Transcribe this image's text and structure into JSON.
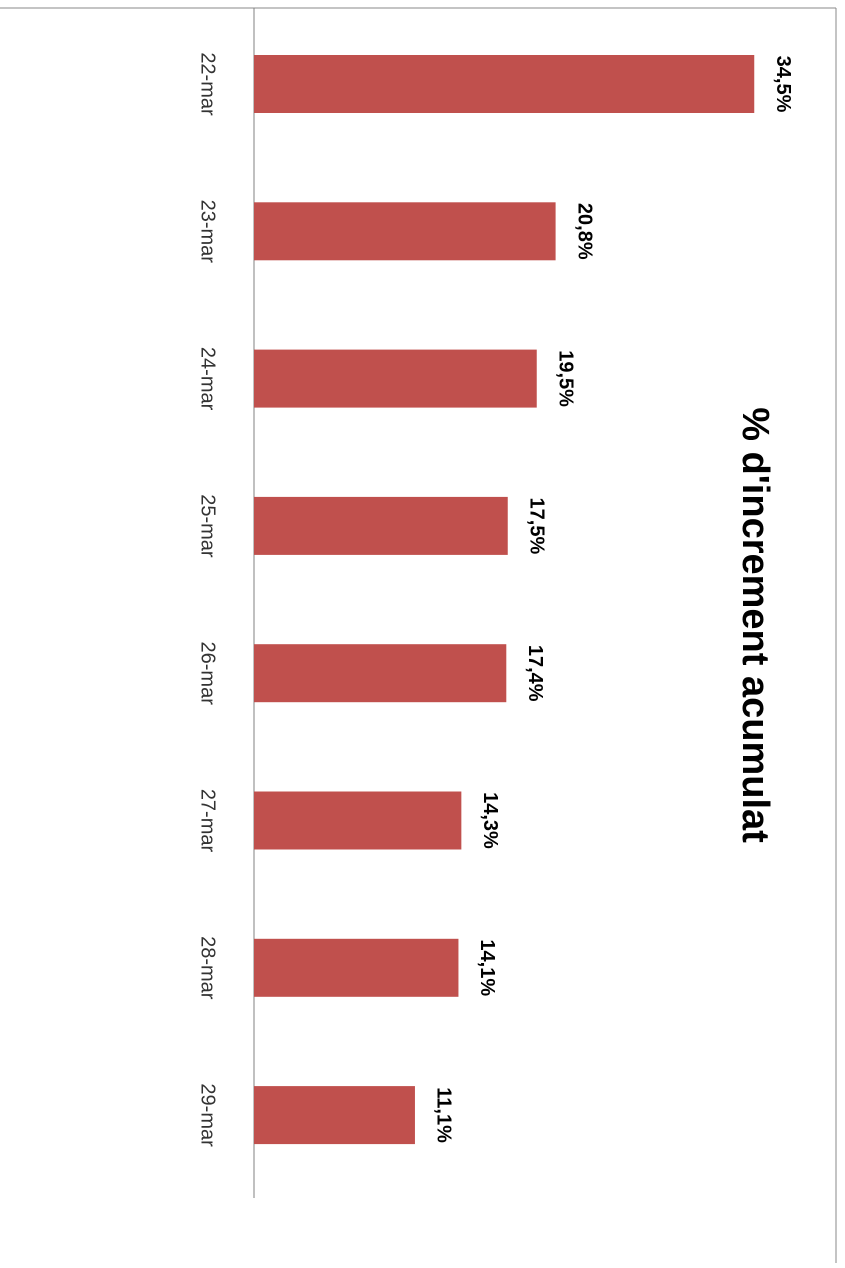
{
  "chart_data": {
    "type": "bar",
    "orientation": "vertical-text (rotated 90° clockwise)",
    "title": "% d'increment acumulat",
    "categories": [
      "22-mar",
      "23-mar",
      "24-mar",
      "25-mar",
      "26-mar",
      "27-mar",
      "28-mar",
      "29-mar"
    ],
    "values": [
      34.5,
      20.8,
      19.5,
      17.5,
      17.4,
      14.3,
      14.1,
      11.1
    ],
    "data_labels": [
      "34,5%",
      "20,8%",
      "19,5%",
      "17,5%",
      "17,4%",
      "14,3%",
      "14,1%",
      "11,1%"
    ],
    "xlabel": "",
    "ylabel": "",
    "grid": false,
    "legend": "none",
    "colors": {
      "bar": "#c0504d",
      "axis": "#808080",
      "text": "#000000",
      "frame": "#888888"
    }
  }
}
